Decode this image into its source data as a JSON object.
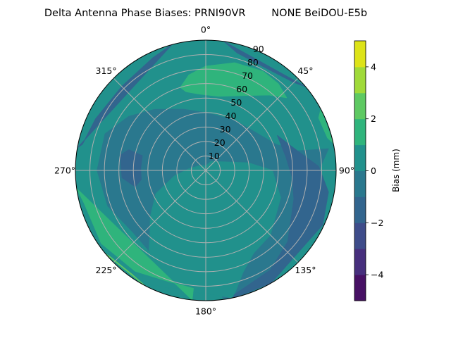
{
  "chart_data": {
    "type": "polar-contour",
    "title": "Delta Antenna Phase Biases: PRNI90VR        NONE BeiDOU-E5b",
    "angular_ticks": [
      "0°",
      "45°",
      "90°",
      "135°",
      "180°",
      "225°",
      "270°",
      "315°"
    ],
    "angular_tick_values": [
      0,
      45,
      90,
      135,
      180,
      225,
      270,
      315
    ],
    "angular_direction": "clockwise",
    "zero_location": "top",
    "radial_ticks": [
      "10",
      "20",
      "30",
      "40",
      "50",
      "60",
      "70",
      "80",
      "90"
    ],
    "radial_tick_values": [
      10,
      20,
      30,
      40,
      50,
      60,
      70,
      80,
      90
    ],
    "rlim": [
      0,
      90
    ],
    "grid": true,
    "colorbar": {
      "label": "Bias (mm)",
      "levels": [
        -5,
        -4,
        -3,
        -2,
        -1,
        0,
        1,
        2,
        3,
        4,
        5
      ],
      "tick_values": [
        -4,
        -2,
        0,
        2,
        4
      ],
      "tick_labels": [
        "−4",
        "−2",
        "0",
        "2",
        "4"
      ],
      "colormap": "viridis",
      "band_colors": [
        "#471164",
        "#472f7d",
        "#3e4c8a",
        "#32658e",
        "#2a788e",
        "#21918c",
        "#2fb47c",
        "#5ec962",
        "#a0da39",
        "#dde318"
      ]
    },
    "background_level": [
      0,
      1
    ],
    "regions": [
      {
        "level": [
          -1,
          0
        ],
        "points": [
          [
            0,
            40
          ],
          [
            30,
            40
          ],
          [
            55,
            44
          ],
          [
            70,
            52
          ],
          [
            78,
            65
          ],
          [
            80,
            86
          ],
          [
            150,
            88
          ],
          [
            160,
            90
          ],
          [
            172,
            90
          ],
          [
            175,
            80
          ],
          [
            200,
            75
          ],
          [
            215,
            68
          ],
          [
            230,
            66
          ],
          [
            250,
            72
          ],
          [
            270,
            75
          ],
          [
            290,
            74
          ],
          [
            305,
            65
          ],
          [
            320,
            55
          ],
          [
            340,
            45
          ],
          [
            359,
            40
          ]
        ]
      },
      {
        "level": [
          0,
          1
        ],
        "points": [
          [
            0,
            3
          ],
          [
            30,
            7
          ],
          [
            60,
            12
          ],
          [
            80,
            30
          ],
          [
            90,
            46
          ],
          [
            110,
            55
          ],
          [
            135,
            63
          ],
          [
            150,
            66
          ],
          [
            160,
            75
          ],
          [
            168,
            90
          ],
          [
            210,
            90
          ],
          [
            212,
            75
          ],
          [
            220,
            60
          ],
          [
            230,
            50
          ],
          [
            245,
            38
          ],
          [
            260,
            22
          ],
          [
            275,
            12
          ],
          [
            300,
            6
          ],
          [
            330,
            4
          ]
        ]
      },
      {
        "level": [
          -2,
          -1
        ],
        "points": [
          [
            64,
            55
          ],
          [
            75,
            62
          ],
          [
            88,
            78
          ],
          [
            100,
            86
          ],
          [
            115,
            89
          ],
          [
            150,
            90
          ],
          [
            168,
            90
          ],
          [
            167,
            88
          ],
          [
            147,
            82
          ],
          [
            131,
            75
          ],
          [
            108,
            64
          ],
          [
            95,
            60
          ],
          [
            80,
            56
          ]
        ]
      },
      {
        "level": [
          -2,
          -1
        ],
        "points": [
          [
            283,
            45
          ],
          [
            285,
            55
          ],
          [
            280,
            60
          ],
          [
            265,
            58
          ],
          [
            257,
            50
          ],
          [
            262,
            45
          ],
          [
            272,
            45
          ]
        ]
      },
      {
        "level": [
          -2,
          -1
        ],
        "points": [
          [
            280,
            90
          ],
          [
            345,
            90
          ],
          [
            335,
            86
          ],
          [
            315,
            82
          ],
          [
            295,
            84
          ],
          [
            282,
            87
          ]
        ]
      },
      {
        "level": [
          -2,
          -1
        ],
        "points": [
          [
            8,
            90
          ],
          [
            50,
            90
          ],
          [
            45,
            86
          ],
          [
            30,
            82
          ],
          [
            15,
            84
          ]
        ]
      },
      {
        "level": [
          1,
          2
        ],
        "points": [
          [
            343,
            60
          ],
          [
            350,
            67
          ],
          [
            0,
            72
          ],
          [
            15,
            77
          ],
          [
            30,
            79
          ],
          [
            40,
            78
          ],
          [
            48,
            75
          ],
          [
            40,
            68
          ],
          [
            25,
            57
          ],
          [
            10,
            52
          ],
          [
            355,
            53
          ],
          [
            346,
            56
          ]
        ]
      },
      {
        "level": [
          1,
          2
        ],
        "points": [
          [
            62,
            90
          ],
          [
            78,
            90
          ],
          [
            75,
            87
          ],
          [
            65,
            86
          ]
        ]
      },
      {
        "level": [
          1,
          2
        ],
        "points": [
          [
            186,
            90
          ],
          [
            186,
            82
          ],
          [
            200,
            81
          ],
          [
            215,
            85
          ],
          [
            235,
            88
          ],
          [
            255,
            87
          ],
          [
            262,
            90
          ]
        ]
      },
      {
        "level": [
          2,
          3
        ],
        "points": [
          [
            208,
            90
          ],
          [
            230,
            90
          ],
          [
            228,
            89
          ],
          [
            215,
            88
          ]
        ]
      }
    ]
  }
}
